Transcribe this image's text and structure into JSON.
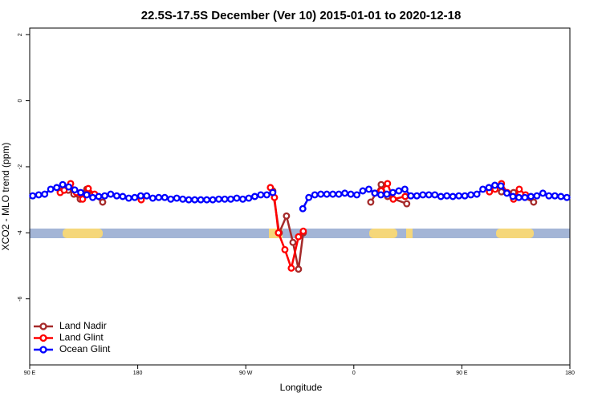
{
  "chart_data": {
    "type": "line",
    "title": "22.5S-17.5S December (Ver 10)   2015-01-01 to 2020-12-18",
    "x_label": "Longitude",
    "y_label": "XCO2 - MLO trend (ppm)",
    "xlim": [
      90,
      540
    ],
    "ylim": [
      -8,
      2.2
    ],
    "xticks": [
      {
        "value": 90,
        "label": "90 E"
      },
      {
        "value": 180,
        "label": "180"
      },
      {
        "value": 270,
        "label": "90 W"
      },
      {
        "value": 360,
        "label": "0"
      },
      {
        "value": 450,
        "label": "90 E"
      },
      {
        "value": 540,
        "label": "180"
      }
    ],
    "yticks": [
      2,
      0,
      -2,
      -4,
      -6
    ],
    "legend": "bottomleft",
    "series": [
      {
        "name": "Land Nadir",
        "color": "#a52a2a",
        "x": [
          116.7,
          122.1,
          126.8,
          132.1,
          137.5,
          142.1,
          150.8,
          292.5,
          297.9,
          303.9,
          309.3,
          313.9,
          317.9,
          374.1,
          382.8,
          388.1,
          404.1,
          483.0,
          493.1,
          509.8
        ],
        "values": [
          -2.73,
          -2.71,
          -2.83,
          -2.98,
          -2.68,
          -2.85,
          -3.07,
          -2.73,
          -4.0,
          -3.49,
          -4.29,
          -5.1,
          -4.0,
          -3.07,
          -2.54,
          -2.9,
          -3.12,
          -2.76,
          -2.78,
          -3.07
        ]
      },
      {
        "name": "Land Glint",
        "color": "#ff0000",
        "x": [
          115.4,
          118.7,
          124.1,
          128.8,
          134.1,
          138.8,
          144.1,
          182.9,
          290.5,
          293.9,
          297.2,
          302.6,
          307.9,
          313.9,
          317.9,
          377.4,
          382.8,
          388.1,
          392.8,
          402.8,
          473.0,
          477.7,
          483.0,
          487.7,
          493.1,
          497.8,
          503.1
        ],
        "values": [
          -2.78,
          -2.71,
          -2.51,
          -2.78,
          -2.98,
          -2.66,
          -2.83,
          -3.0,
          -2.63,
          -2.93,
          -4.0,
          -4.51,
          -5.07,
          -4.12,
          -3.95,
          -2.8,
          -2.73,
          -2.51,
          -2.98,
          -2.9,
          -2.76,
          -2.68,
          -2.51,
          -2.78,
          -2.98,
          -2.68,
          -2.85
        ]
      },
      {
        "name": "Ocean Glint",
        "color": "#0000ff",
        "x": [
          92.5,
          97.5,
          102.5,
          107.5,
          112.5,
          117.5,
          122.5,
          127.5,
          132.5,
          137.5,
          142.5,
          147.5,
          152.5,
          157.5,
          162.5,
          167.5,
          172.5,
          177.5,
          182.5,
          187.5,
          192.5,
          197.5,
          202.5,
          207.5,
          212.5,
          217.5,
          222.5,
          227.5,
          232.5,
          237.5,
          242.5,
          247.5,
          252.5,
          257.5,
          262.5,
          267.5,
          272.5,
          277.5,
          282.5,
          287.5,
          292.5,
          297.5,
          302.5,
          307.5,
          312.5,
          317.5,
          322.5,
          327.5,
          332.5,
          337.5,
          342.5,
          347.5,
          352.5,
          357.5,
          362.5,
          367.5,
          372.5,
          377.5,
          382.5,
          387.5,
          392.5,
          397.5,
          402.5,
          407.5,
          412.5,
          417.5,
          422.5,
          427.5,
          432.5,
          437.5,
          442.5,
          447.5,
          452.5,
          457.5,
          462.5,
          467.5,
          472.5,
          477.5,
          482.5,
          487.5,
          492.5,
          497.5,
          502.5,
          507.5,
          512.5,
          517.5,
          522.5,
          527.5,
          532.5,
          537.5
        ],
        "values": [
          -2.88,
          -2.85,
          -2.83,
          -2.68,
          -2.63,
          -2.54,
          -2.61,
          -2.7,
          -2.78,
          -2.85,
          -2.93,
          -2.9,
          -2.88,
          -2.83,
          -2.88,
          -2.9,
          -2.95,
          -2.93,
          -2.88,
          -2.88,
          -2.95,
          -2.93,
          -2.93,
          -2.98,
          -2.95,
          -2.98,
          -3.0,
          -3.0,
          -3.0,
          -3.0,
          -3.0,
          -2.98,
          -2.98,
          -2.98,
          -2.95,
          -2.98,
          -2.95,
          -2.9,
          -2.85,
          -2.85,
          -2.78,
          null,
          null,
          null,
          null,
          -3.27,
          -2.93,
          -2.85,
          -2.83,
          -2.83,
          -2.83,
          -2.83,
          -2.8,
          -2.83,
          -2.85,
          -2.73,
          -2.68,
          -2.8,
          -2.85,
          -2.83,
          -2.78,
          -2.73,
          -2.68,
          -2.88,
          -2.88,
          -2.85,
          -2.85,
          -2.85,
          -2.9,
          -2.88,
          -2.9,
          -2.88,
          -2.88,
          -2.85,
          -2.83,
          -2.68,
          -2.63,
          -2.56,
          -2.58,
          -2.8,
          -2.9,
          -2.93,
          -2.93,
          -2.9,
          -2.88,
          -2.8,
          -2.88,
          -2.88,
          -2.9,
          -2.93
        ]
      }
    ]
  }
}
